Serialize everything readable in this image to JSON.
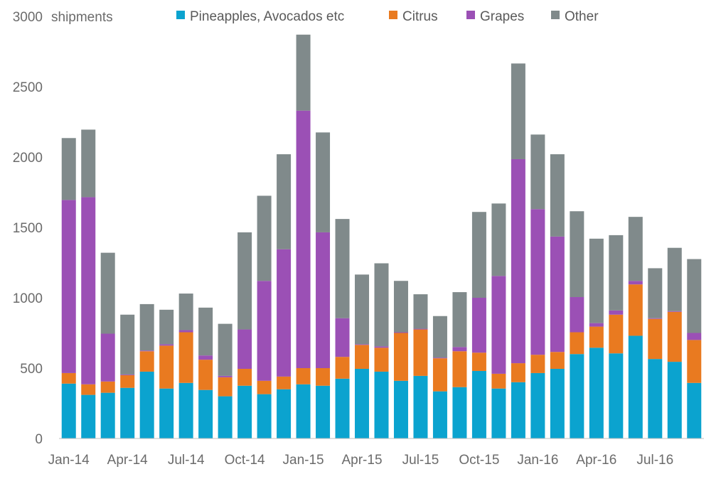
{
  "chart_data": {
    "type": "bar",
    "stacked": true,
    "title": "",
    "xlabel": "",
    "ylabel": "shipments",
    "ylim": [
      0,
      3000
    ],
    "yticks": [
      0,
      500,
      1000,
      1500,
      2000,
      2500,
      3000
    ],
    "categories": [
      "Jan-14",
      "Feb-14",
      "Mar-14",
      "Apr-14",
      "May-14",
      "Jun-14",
      "Jul-14",
      "Aug-14",
      "Sep-14",
      "Oct-14",
      "Nov-14",
      "Dec-14",
      "Jan-15",
      "Feb-15",
      "Mar-15",
      "Apr-15",
      "May-15",
      "Jun-15",
      "Jul-15",
      "Aug-15",
      "Sep-15",
      "Oct-15",
      "Nov-15",
      "Dec-15",
      "Jan-16",
      "Feb-16",
      "Mar-16",
      "Apr-16",
      "May-16",
      "Jun-16",
      "Jul-16",
      "Aug-16",
      "Sep-16"
    ],
    "xtick_labels": [
      "Jan-14",
      "Apr-14",
      "Jul-14",
      "Oct-14",
      "Jan-15",
      "Apr-15",
      "Jul-15",
      "Oct-15",
      "Jan-16",
      "Apr-16",
      "Jul-16"
    ],
    "xtick_every": 3,
    "legend_position": "top",
    "series": [
      {
        "name": "Pineapples, Avocados etc",
        "color": "#0ba3cf",
        "values": [
          390,
          310,
          325,
          360,
          475,
          355,
          395,
          345,
          300,
          375,
          315,
          350,
          385,
          375,
          425,
          495,
          475,
          410,
          445,
          335,
          365,
          480,
          355,
          400,
          465,
          495,
          600,
          645,
          605,
          730,
          565,
          545,
          395
        ]
      },
      {
        "name": "Citrus",
        "color": "#e97a20",
        "values": [
          75,
          75,
          80,
          90,
          145,
          305,
          360,
          215,
          135,
          120,
          95,
          90,
          115,
          125,
          155,
          170,
          170,
          340,
          330,
          235,
          255,
          130,
          105,
          135,
          130,
          120,
          155,
          150,
          275,
          365,
          285,
          355,
          305
        ]
      },
      {
        "name": "Grapes",
        "color": "#9b50b5",
        "values": [
          1230,
          1330,
          340,
          5,
          5,
          10,
          15,
          30,
          10,
          280,
          710,
          905,
          1830,
          965,
          275,
          5,
          10,
          5,
          5,
          5,
          30,
          390,
          695,
          1450,
          1035,
          820,
          250,
          25,
          30,
          25,
          5,
          5,
          50
        ]
      },
      {
        "name": "Other",
        "color": "#808a8b",
        "values": [
          440,
          480,
          575,
          425,
          330,
          245,
          260,
          340,
          370,
          690,
          605,
          675,
          540,
          710,
          705,
          495,
          590,
          365,
          245,
          295,
          390,
          610,
          515,
          680,
          530,
          585,
          610,
          600,
          535,
          455,
          355,
          450,
          525
        ]
      }
    ]
  }
}
